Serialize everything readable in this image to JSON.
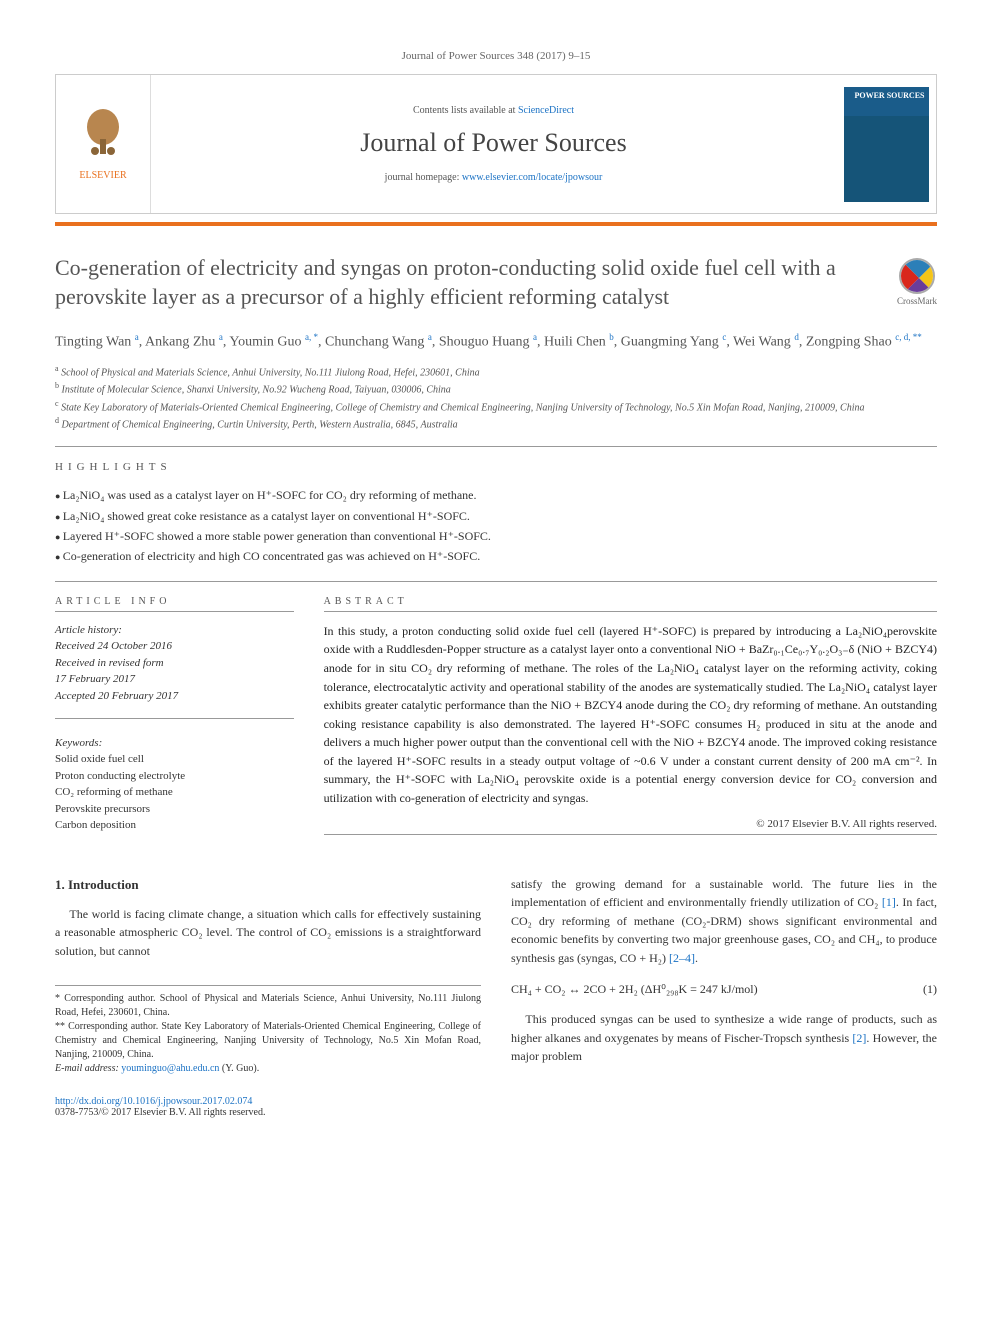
{
  "journal_ref": "Journal of Power Sources 348 (2017) 9–15",
  "header": {
    "contents_label": "Contents lists available at ",
    "contents_link": "ScienceDirect",
    "journal_name": "Journal of Power Sources",
    "homepage_label": "journal homepage: ",
    "homepage_url": "www.elsevier.com/locate/jpowsour",
    "publisher": "ELSEVIER",
    "cover_title": "POWER SOURCES"
  },
  "crossmark": "CrossMark",
  "title": "Co-generation of electricity and syngas on proton-conducting solid oxide fuel cell with a perovskite layer as a precursor of a highly efficient reforming catalyst",
  "authors_html": "Tingting Wan <sup>a</sup>, Ankang Zhu <sup>a</sup>, Youmin Guo <sup>a, *</sup>, Chunchang Wang <sup>a</sup>, Shouguo Huang <sup>a</sup>, Huili Chen <sup>b</sup>, Guangming Yang <sup>c</sup>, Wei Wang <sup>d</sup>, Zongping Shao <sup>c, d, **</sup>",
  "affiliations": [
    "a School of Physical and Materials Science, Anhui University, No.111 Jiulong Road, Hefei, 230601, China",
    "b Institute of Molecular Science, Shanxi University, No.92 Wucheng Road, Taiyuan, 030006, China",
    "c State Key Laboratory of Materials-Oriented Chemical Engineering, College of Chemistry and Chemical Engineering, Nanjing University of Technology, No.5 Xin Mofan Road, Nanjing, 210009, China",
    "d Department of Chemical Engineering, Curtin University, Perth, Western Australia, 6845, Australia"
  ],
  "highlights_label": "HIGHLIGHTS",
  "highlights": [
    "La₂NiO₄ was used as a catalyst layer on H⁺-SOFC for CO₂ dry reforming of methane.",
    "La₂NiO₄ showed great coke resistance as a catalyst layer on conventional H⁺-SOFC.",
    "Layered H⁺-SOFC showed a more stable power generation than conventional H⁺-SOFC.",
    "Co-generation of electricity and high CO concentrated gas was achieved on H⁺-SOFC."
  ],
  "article_info_label": "ARTICLE INFO",
  "abstract_label": "ABSTRACT",
  "history": {
    "label": "Article history:",
    "received": "Received 24 October 2016",
    "revised": "Received in revised form",
    "revised_date": "17 February 2017",
    "accepted": "Accepted 20 February 2017"
  },
  "keywords_label": "Keywords:",
  "keywords": [
    "Solid oxide fuel cell",
    "Proton conducting electrolyte",
    "CO₂ reforming of methane",
    "Perovskite precursors",
    "Carbon deposition"
  ],
  "abstract": "In this study, a proton conducting solid oxide fuel cell (layered H⁺-SOFC) is prepared by introducing a La₂NiO₄perovskite oxide with a Ruddlesden-Popper structure as a catalyst layer onto a conventional NiO + BaZr₀.₁Ce₀.₇Y₀.₂O₃₋δ (NiO + BZCY4) anode for in situ CO₂ dry reforming of methane. The roles of the La₂NiO₄ catalyst layer on the reforming activity, coking tolerance, electrocatalytic activity and operational stability of the anodes are systematically studied. The La₂NiO₄ catalyst layer exhibits greater catalytic performance than the NiO + BZCY4 anode during the CO₂ dry reforming of methane. An outstanding coking resistance capability is also demonstrated. The layered H⁺-SOFC consumes H₂ produced in situ at the anode and delivers a much higher power output than the conventional cell with the NiO + BZCY4 anode. The improved coking resistance of the layered H⁺-SOFC results in a steady output voltage of ~0.6 V under a constant current density of 200 mA cm⁻². In summary, the H⁺-SOFC with La₂NiO₄ perovskite oxide is a potential energy conversion device for CO₂ conversion and utilization with co-generation of electricity and syngas.",
  "copyright": "© 2017 Elsevier B.V. All rights reserved.",
  "intro_heading": "1. Introduction",
  "intro_p1": "The world is facing climate change, a situation which calls for effectively sustaining a reasonable atmospheric CO₂ level. The control of CO₂ emissions is a straightforward solution, but cannot",
  "intro_p2a": "satisfy the growing demand for a sustainable world. The future lies in the implementation of efficient and environmentally friendly utilization of CO₂ ",
  "intro_ref1": "[1]",
  "intro_p2b": ". In fact, CO₂ dry reforming of methane (CO₂-DRM) shows significant environmental and economic benefits by converting two major greenhouse gases, CO₂ and CH₄, to produce synthesis gas (syngas, CO + H₂) ",
  "intro_ref2": "[2–4]",
  "intro_p2c": ".",
  "equation": "CH₄ + CO₂ ↔ 2CO + 2H₂  (ΔH⁰₂₉₈K = 247 kJ/mol)",
  "eq_num": "(1)",
  "intro_p3a": "This produced syngas can be used to synthesize a wide range of products, such as higher alkanes and oxygenates by means of Fischer-Tropsch synthesis ",
  "intro_ref3": "[2]",
  "intro_p3b": ". However, the major problem",
  "footnotes": {
    "star1": "* Corresponding author. School of Physical and Materials Science, Anhui University, No.111 Jiulong Road, Hefei, 230601, China.",
    "star2": "** Corresponding author. State Key Laboratory of Materials-Oriented Chemical Engineering, College of Chemistry and Chemical Engineering, Nanjing University of Technology, No.5 Xin Mofan Road, Nanjing, 210009, China.",
    "email_label": "E-mail address: ",
    "email": "youminguo@ahu.edu.cn",
    "email_name": " (Y. Guo)."
  },
  "footer": {
    "doi": "http://dx.doi.org/10.1016/j.jpowsour.2017.02.074",
    "issn_line": "0378-7753/© 2017 Elsevier B.V. All rights reserved."
  },
  "colors": {
    "orange": "#e9701e",
    "link_blue": "#1b72c4",
    "text_gray": "#555555",
    "rule_gray": "#999999"
  }
}
